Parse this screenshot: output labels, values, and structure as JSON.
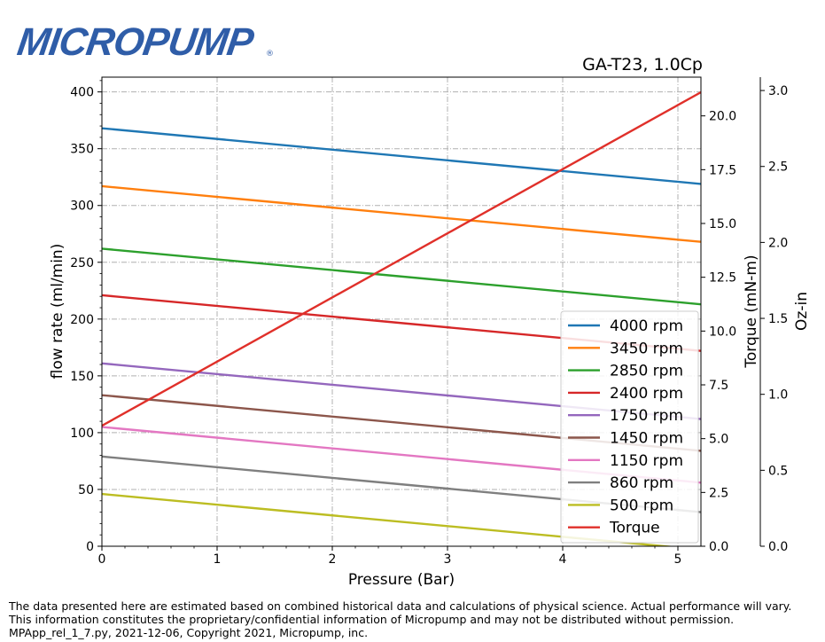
{
  "brand": {
    "logo_text": "MICROPUMP",
    "registered": "®"
  },
  "chart_data": {
    "type": "line",
    "title": "GA-T23,  1.0Cp",
    "xlabel": "Pressure (Bar)",
    "ylabel": "flow rate (ml/min)",
    "y2label": "Torque (mN-m)",
    "y3label": "Oz-in",
    "xlim": [
      0,
      5.2
    ],
    "ylim": [
      0,
      413
    ],
    "y2lim": [
      0,
      21.8
    ],
    "y3lim": [
      0,
      3.088
    ],
    "x_ticks": [
      0,
      1,
      2,
      3,
      4,
      5
    ],
    "y_ticks": [
      0,
      50,
      100,
      150,
      200,
      250,
      300,
      350,
      400
    ],
    "y2_ticks": [
      "0.0",
      "2.5",
      "5.0",
      "7.5",
      "10.0",
      "12.5",
      "15.0",
      "17.5",
      "20.0"
    ],
    "y3_ticks": [
      "0.0",
      "0.5",
      "1.0",
      "1.5",
      "2.0",
      "2.5",
      "3.0"
    ],
    "grid": true,
    "legend_position": "lower-right",
    "x": [
      0,
      5.2
    ],
    "series": [
      {
        "name": "4000 rpm",
        "color": "#1f77b4",
        "axis": "flow",
        "values": [
          368,
          319
        ]
      },
      {
        "name": "3450 rpm",
        "color": "#ff7f0e",
        "axis": "flow",
        "values": [
          317,
          268
        ]
      },
      {
        "name": "2850 rpm",
        "color": "#2ca02c",
        "axis": "flow",
        "values": [
          262,
          213
        ]
      },
      {
        "name": "2400 rpm",
        "color": "#d62728",
        "axis": "flow",
        "values": [
          221,
          172
        ]
      },
      {
        "name": "1750 rpm",
        "color": "#9467bd",
        "axis": "flow",
        "values": [
          161,
          112
        ]
      },
      {
        "name": "1450 rpm",
        "color": "#8c564b",
        "axis": "flow",
        "values": [
          133,
          84
        ]
      },
      {
        "name": "1150 rpm",
        "color": "#e377c2",
        "axis": "flow",
        "values": [
          105,
          56
        ]
      },
      {
        "name": "860 rpm",
        "color": "#7f7f7f",
        "axis": "flow",
        "values": [
          79,
          30
        ]
      },
      {
        "name": "500 rpm",
        "color": "#bcbd22",
        "axis": "flow",
        "values": [
          46,
          -3
        ]
      },
      {
        "name": "Torque",
        "color": "#e0302a",
        "axis": "torque",
        "values": [
          5.6,
          21.1
        ]
      }
    ]
  },
  "footer": {
    "line1": "The data presented here are estimated based on combined historical data and calculations of physical science.  Actual performance will vary.",
    "line2": "This information constitutes the proprietary/confidential information of Micropump and may not be distributed without permission.",
    "line3": "MPApp_rel_1_7.py, 2021-12-06, Copyright 2021, Micropump, inc."
  }
}
